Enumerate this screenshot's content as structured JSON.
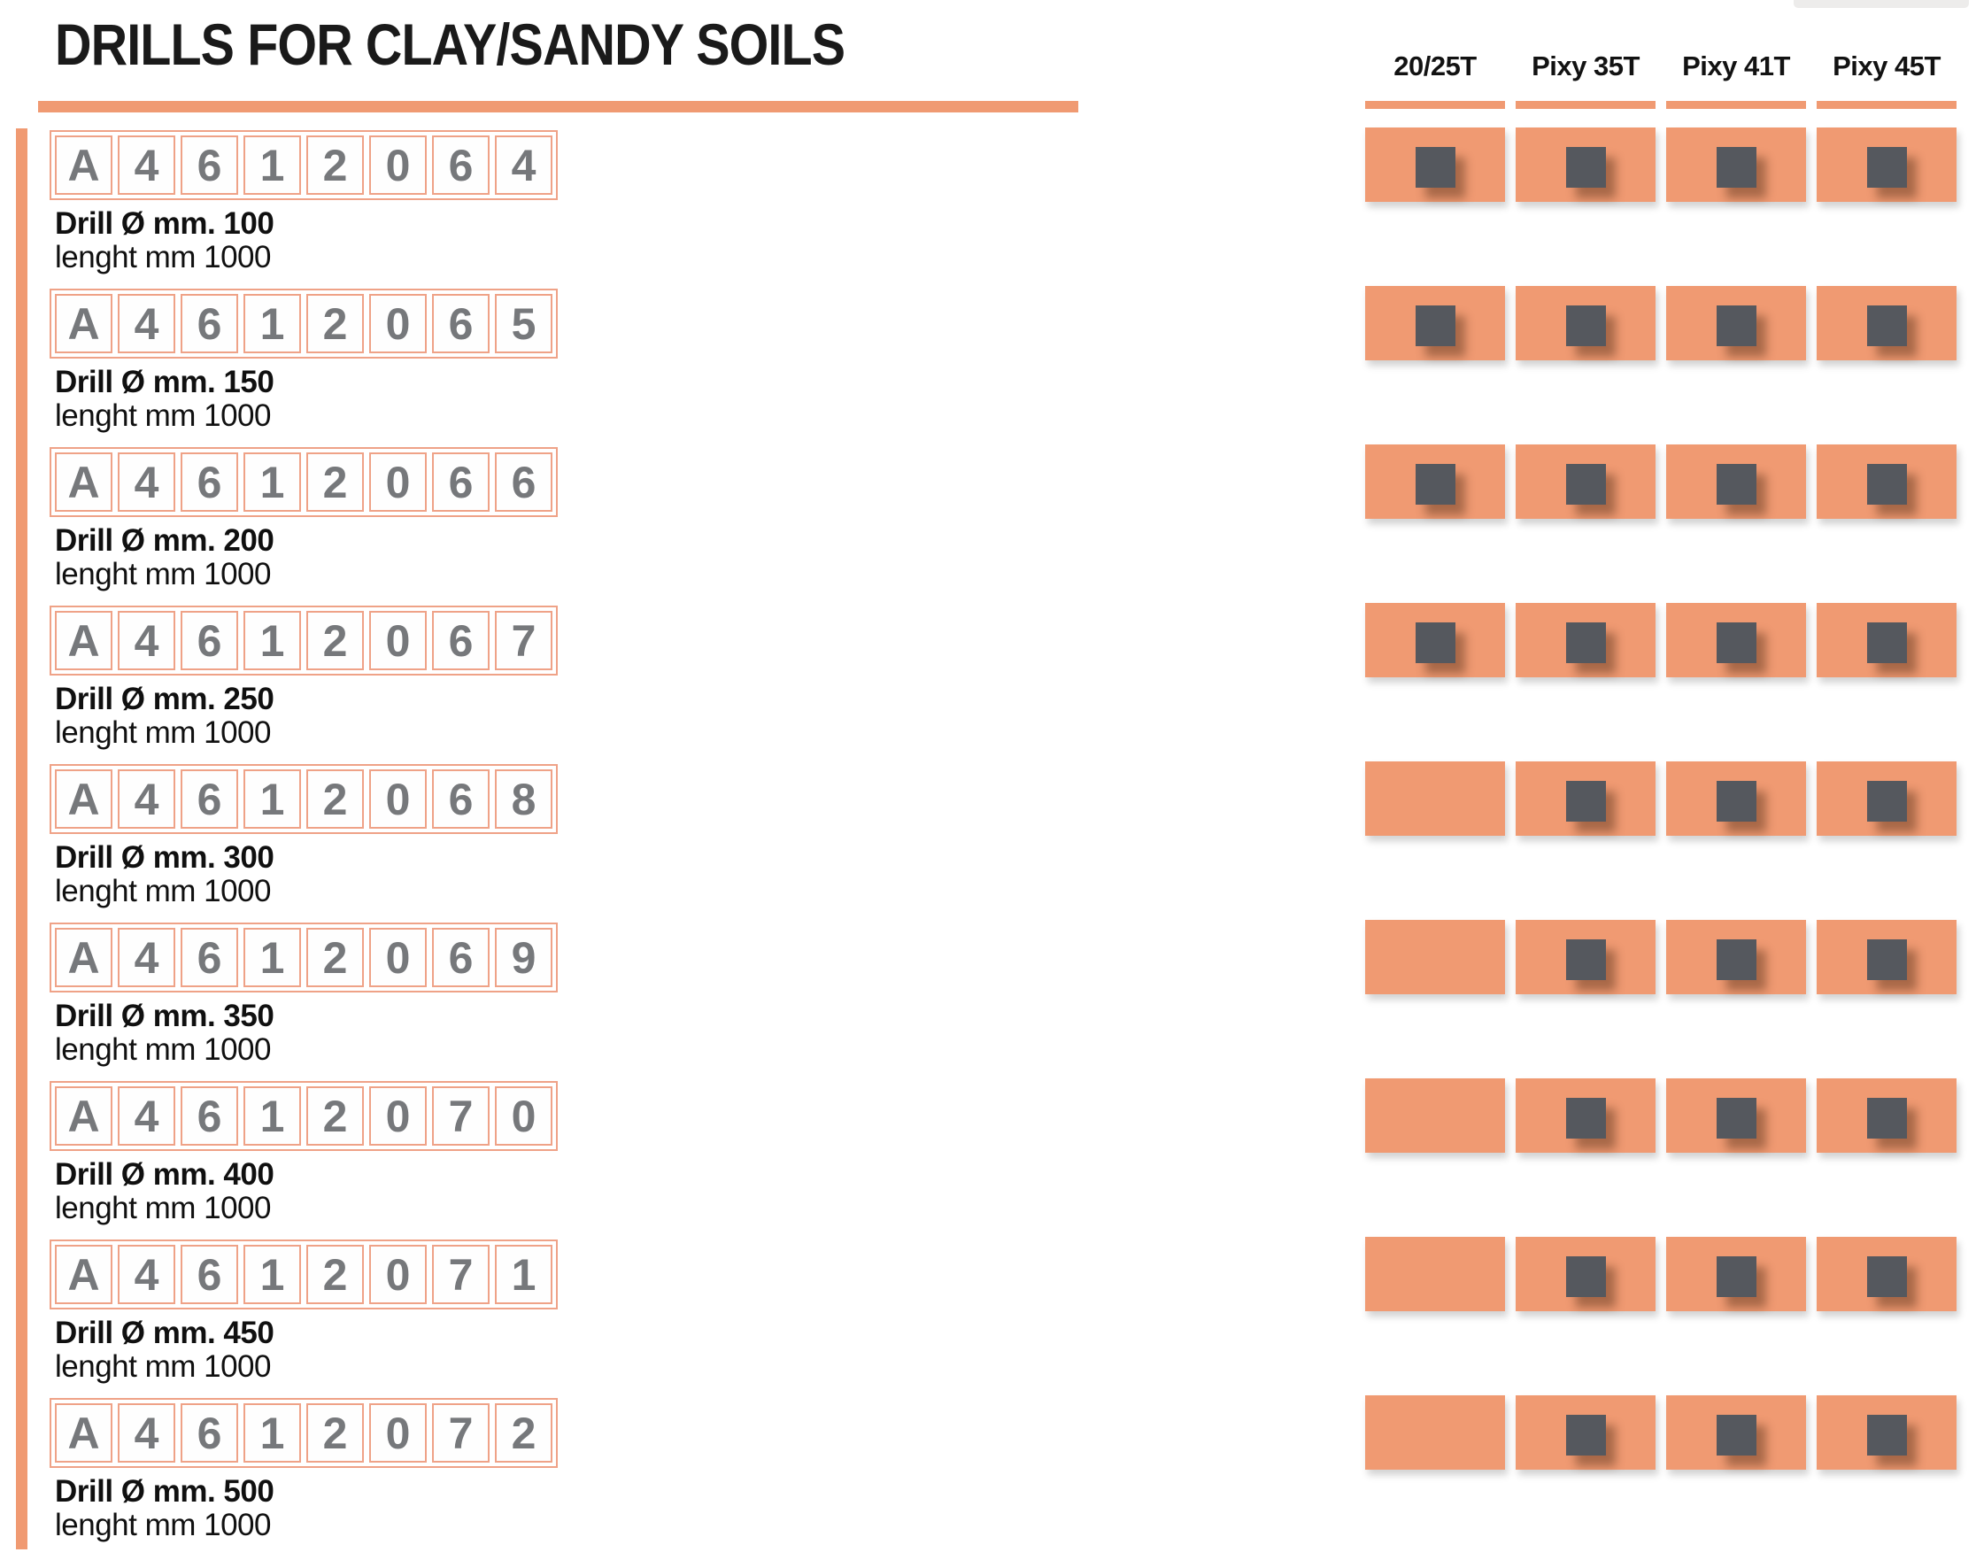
{
  "title": "DRILLS FOR CLAY/SANDY SOILS",
  "columns": [
    "20/25T",
    "Pixy 35T",
    "Pixy 41T",
    "Pixy 45T"
  ],
  "products": [
    {
      "code": [
        "A",
        "4",
        "6",
        "1",
        "2",
        "0",
        "6",
        "4"
      ],
      "name": "Drill Ø mm. 100",
      "length": "lenght mm 1000",
      "compat": [
        true,
        true,
        true,
        true
      ]
    },
    {
      "code": [
        "A",
        "4",
        "6",
        "1",
        "2",
        "0",
        "6",
        "5"
      ],
      "name": "Drill Ø mm. 150",
      "length": "lenght mm 1000",
      "compat": [
        true,
        true,
        true,
        true
      ]
    },
    {
      "code": [
        "A",
        "4",
        "6",
        "1",
        "2",
        "0",
        "6",
        "6"
      ],
      "name": "Drill Ø mm. 200",
      "length": "lenght mm 1000",
      "compat": [
        true,
        true,
        true,
        true
      ]
    },
    {
      "code": [
        "A",
        "4",
        "6",
        "1",
        "2",
        "0",
        "6",
        "7"
      ],
      "name": "Drill Ø mm. 250",
      "length": "lenght mm 1000",
      "compat": [
        true,
        true,
        true,
        true
      ]
    },
    {
      "code": [
        "A",
        "4",
        "6",
        "1",
        "2",
        "0",
        "6",
        "8"
      ],
      "name": "Drill Ø mm. 300",
      "length": "lenght mm 1000",
      "compat": [
        false,
        true,
        true,
        true
      ]
    },
    {
      "code": [
        "A",
        "4",
        "6",
        "1",
        "2",
        "0",
        "6",
        "9"
      ],
      "name": "Drill Ø mm. 350",
      "length": "lenght mm 1000",
      "compat": [
        false,
        true,
        true,
        true
      ]
    },
    {
      "code": [
        "A",
        "4",
        "6",
        "1",
        "2",
        "0",
        "7",
        "0"
      ],
      "name": "Drill Ø mm. 400",
      "length": "lenght mm 1000",
      "compat": [
        false,
        true,
        true,
        true
      ]
    },
    {
      "code": [
        "A",
        "4",
        "6",
        "1",
        "2",
        "0",
        "7",
        "1"
      ],
      "name": "Drill Ø mm. 450",
      "length": "lenght mm 1000",
      "compat": [
        false,
        true,
        true,
        true
      ]
    },
    {
      "code": [
        "A",
        "4",
        "6",
        "1",
        "2",
        "0",
        "7",
        "2"
      ],
      "name": "Drill Ø mm. 500",
      "length": "lenght mm 1000",
      "compat": [
        false,
        true,
        true,
        true
      ]
    }
  ],
  "colors": {
    "accent_orange": "#F09A72",
    "box_border_orange": "#EFA287",
    "marker_gray": "#55585E",
    "code_digit_gray": "#76787B"
  }
}
